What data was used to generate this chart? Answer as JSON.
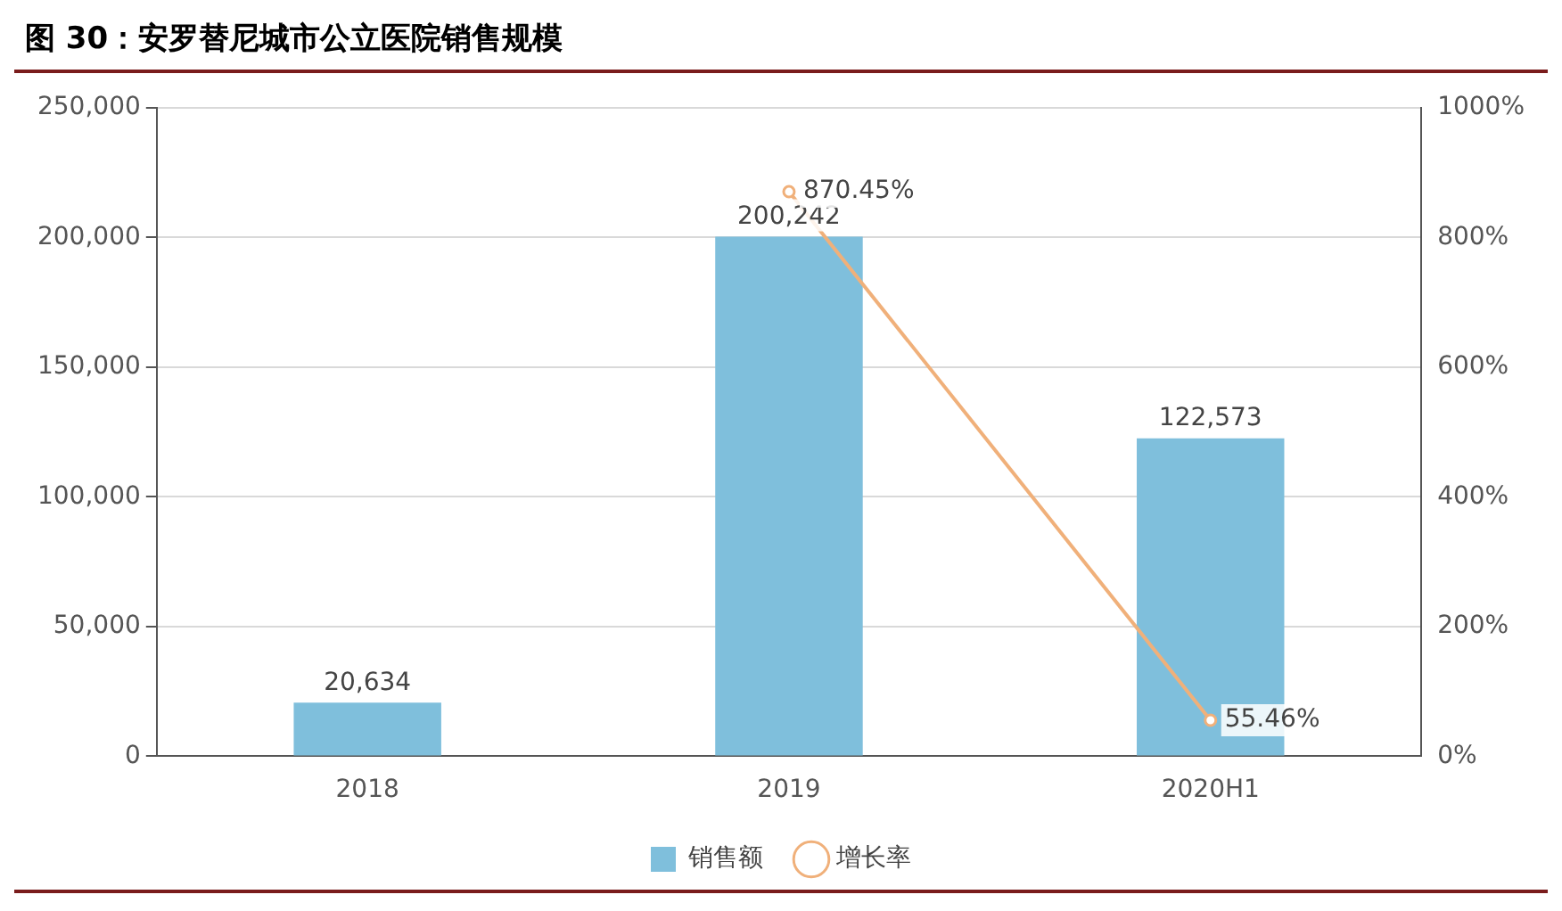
{
  "chart_data": {
    "type": "bar",
    "title": "图 30：安罗替尼城市公立医院销售规模",
    "categories": [
      "2018",
      "2019",
      "2020H1"
    ],
    "series": [
      {
        "name": "销售额",
        "color": "#7fbfdc",
        "values": [
          20634,
          200242,
          122573
        ],
        "value_labels": [
          "20,634",
          "200,242",
          "122,573"
        ]
      },
      {
        "name": "增长率",
        "type": "line",
        "axis": "y2",
        "color": "#f0b07a",
        "values": [
          null,
          870.45,
          55.46
        ],
        "value_labels": [
          null,
          "870.45%",
          "55.46%"
        ]
      }
    ],
    "ylim": [
      0,
      250000
    ],
    "yticks": [
      {
        "value": 0,
        "label": "0"
      },
      {
        "value": 50000,
        "label": "50,000"
      },
      {
        "value": 100000,
        "label": "100,000"
      },
      {
        "value": 150000,
        "label": "150,000"
      },
      {
        "value": 200000,
        "label": "200,000"
      },
      {
        "value": 250000,
        "label": "250,000"
      }
    ],
    "y2lim": [
      0,
      1000
    ],
    "y2ticks": [
      {
        "value": 0,
        "label": "0%"
      },
      {
        "value": 200,
        "label": "200%"
      },
      {
        "value": 400,
        "label": "400%"
      },
      {
        "value": 600,
        "label": "600%"
      },
      {
        "value": 800,
        "label": "800%"
      },
      {
        "value": 1000,
        "label": "1000%"
      }
    ],
    "grid": "y",
    "legend": "bottom",
    "marker": "circle",
    "line_style": "solid"
  }
}
